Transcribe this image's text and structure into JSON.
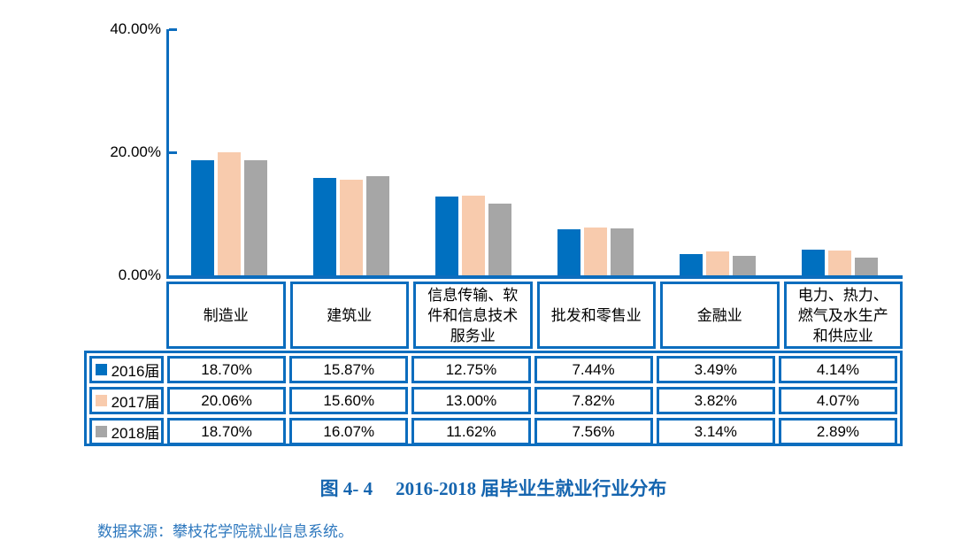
{
  "colors": {
    "axis_blue": "#0c6dbe",
    "border_blue": "#0c6dbe",
    "series_2016": "#0070c0",
    "series_2017": "#f8cbad",
    "series_2018": "#a6a6a6",
    "caption_blue": "#1565af",
    "source_blue": "#2e78be",
    "text_black": "#000000"
  },
  "chart_data": {
    "type": "bar",
    "categories": [
      "制造业",
      "建筑业",
      "信息传输、软件和信息技术服务业",
      "批发和零售业",
      "金融业",
      "电力、热力、燃气及水生产和供应业"
    ],
    "series": [
      {
        "name": "2016届",
        "color_key": "series_2016",
        "values": [
          18.7,
          15.87,
          12.75,
          7.44,
          3.49,
          4.14
        ]
      },
      {
        "name": "2017届",
        "color_key": "series_2017",
        "values": [
          20.06,
          15.6,
          13.0,
          7.82,
          3.82,
          4.07
        ]
      },
      {
        "name": "2018届",
        "color_key": "series_2018",
        "values": [
          18.7,
          16.07,
          11.62,
          7.56,
          3.14,
          2.89
        ]
      }
    ],
    "title": "图 4- 4  2016-2018 届毕业生就业行业分布",
    "xlabel": "",
    "ylabel": "",
    "ylim": [
      0,
      40
    ],
    "yticks": [
      {
        "value": 40,
        "label": "40.00%"
      },
      {
        "value": 20,
        "label": "20.00%"
      },
      {
        "value": 0,
        "label": "0.00%"
      }
    ],
    "grid": false,
    "legend_position": "table-row-headers"
  },
  "table": {
    "rows": [
      {
        "label": "2016届",
        "swatch_color_key": "series_2016",
        "cells": [
          "18.70%",
          "15.87%",
          "12.75%",
          "7.44%",
          "3.49%",
          "4.14%"
        ]
      },
      {
        "label": "2017届",
        "swatch_color_key": "series_2017",
        "cells": [
          "20.06%",
          "15.60%",
          "13.00%",
          "7.82%",
          "3.82%",
          "4.07%"
        ]
      },
      {
        "label": "2018届",
        "swatch_color_key": "series_2018",
        "cells": [
          "18.70%",
          "16.07%",
          "11.62%",
          "7.56%",
          "3.14%",
          "2.89%"
        ]
      }
    ]
  },
  "caption": {
    "figure_label": "图 4- 4",
    "title": "2016-2018 届毕业生就业行业分布"
  },
  "source": {
    "text": "数据来源：攀枝花学院就业信息系统。"
  }
}
